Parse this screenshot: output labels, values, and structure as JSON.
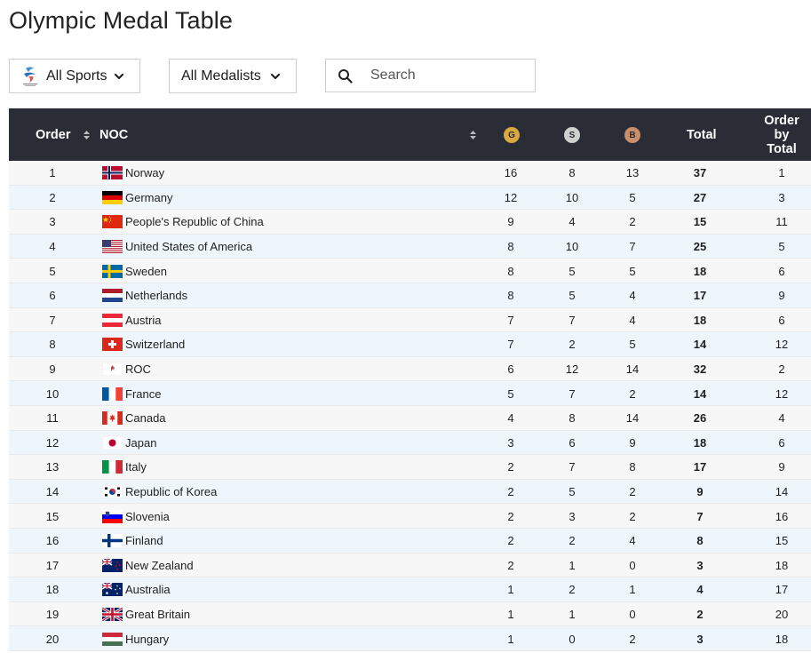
{
  "page": {
    "title": "Olympic Medal Table"
  },
  "filters": {
    "sports_label": "All Sports",
    "medalists_label": "All Medalists",
    "search_placeholder": "Search"
  },
  "table": {
    "headers": {
      "order": "Order",
      "noc": "NOC",
      "gold": "G",
      "silver": "S",
      "bronze": "B",
      "total": "Total",
      "order_by_total_1": "Order",
      "order_by_total_2": "by",
      "order_by_total_3": "Total"
    },
    "rows": [
      {
        "order": "1",
        "noc": "Norway",
        "flag": "norway-flag-icon",
        "g": "16",
        "s": "8",
        "b": "13",
        "total": "37",
        "obt": "1"
      },
      {
        "order": "2",
        "noc": "Germany",
        "flag": "germany-flag-icon",
        "g": "12",
        "s": "10",
        "b": "5",
        "total": "27",
        "obt": "3"
      },
      {
        "order": "3",
        "noc": "People's Republic of China",
        "flag": "china-flag-icon",
        "g": "9",
        "s": "4",
        "b": "2",
        "total": "15",
        "obt": "11"
      },
      {
        "order": "4",
        "noc": "United States of America",
        "flag": "usa-flag-icon",
        "g": "8",
        "s": "10",
        "b": "7",
        "total": "25",
        "obt": "5"
      },
      {
        "order": "5",
        "noc": "Sweden",
        "flag": "sweden-flag-icon",
        "g": "8",
        "s": "5",
        "b": "5",
        "total": "18",
        "obt": "6"
      },
      {
        "order": "6",
        "noc": "Netherlands",
        "flag": "netherlands-flag-icon",
        "g": "8",
        "s": "5",
        "b": "4",
        "total": "17",
        "obt": "9"
      },
      {
        "order": "7",
        "noc": "Austria",
        "flag": "austria-flag-icon",
        "g": "7",
        "s": "7",
        "b": "4",
        "total": "18",
        "obt": "6"
      },
      {
        "order": "8",
        "noc": "Switzerland",
        "flag": "switzerland-flag-icon",
        "g": "7",
        "s": "2",
        "b": "5",
        "total": "14",
        "obt": "12"
      },
      {
        "order": "9",
        "noc": "ROC",
        "flag": "roc-flag-icon",
        "g": "6",
        "s": "12",
        "b": "14",
        "total": "32",
        "obt": "2"
      },
      {
        "order": "10",
        "noc": "France",
        "flag": "france-flag-icon",
        "g": "5",
        "s": "7",
        "b": "2",
        "total": "14",
        "obt": "12"
      },
      {
        "order": "11",
        "noc": "Canada",
        "flag": "canada-flag-icon",
        "g": "4",
        "s": "8",
        "b": "14",
        "total": "26",
        "obt": "4"
      },
      {
        "order": "12",
        "noc": "Japan",
        "flag": "japan-flag-icon",
        "g": "3",
        "s": "6",
        "b": "9",
        "total": "18",
        "obt": "6"
      },
      {
        "order": "13",
        "noc": "Italy",
        "flag": "italy-flag-icon",
        "g": "2",
        "s": "7",
        "b": "8",
        "total": "17",
        "obt": "9"
      },
      {
        "order": "14",
        "noc": "Republic of Korea",
        "flag": "korea-flag-icon",
        "g": "2",
        "s": "5",
        "b": "2",
        "total": "9",
        "obt": "14"
      },
      {
        "order": "15",
        "noc": "Slovenia",
        "flag": "slovenia-flag-icon",
        "g": "2",
        "s": "3",
        "b": "2",
        "total": "7",
        "obt": "16"
      },
      {
        "order": "16",
        "noc": "Finland",
        "flag": "finland-flag-icon",
        "g": "2",
        "s": "2",
        "b": "4",
        "total": "8",
        "obt": "15"
      },
      {
        "order": "17",
        "noc": "New Zealand",
        "flag": "new-zealand-flag-icon",
        "g": "2",
        "s": "1",
        "b": "0",
        "total": "3",
        "obt": "18"
      },
      {
        "order": "18",
        "noc": "Australia",
        "flag": "australia-flag-icon",
        "g": "1",
        "s": "2",
        "b": "1",
        "total": "4",
        "obt": "17"
      },
      {
        "order": "19",
        "noc": "Great Britain",
        "flag": "great-britain-flag-icon",
        "g": "1",
        "s": "1",
        "b": "0",
        "total": "2",
        "obt": "20"
      },
      {
        "order": "20",
        "noc": "Hungary",
        "flag": "hungary-flag-icon",
        "g": "1",
        "s": "0",
        "b": "2",
        "total": "3",
        "obt": "18"
      }
    ]
  },
  "colors": {
    "header_bg": "#2a2c36",
    "row_odd": "#f7f7f7",
    "row_even": "#eef6fc",
    "gold": "#d9a740",
    "silver": "#cfcfcf",
    "bronze": "#c98e6c"
  }
}
